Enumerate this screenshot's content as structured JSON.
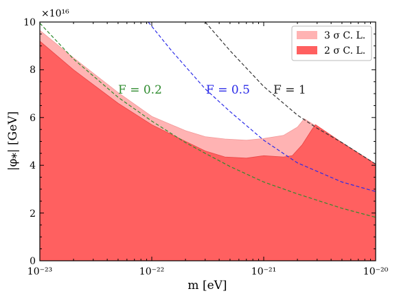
{
  "chart_data": {
    "type": "area",
    "xlabel": "m [eV]",
    "ylabel": "|φ⁎| [GeV]",
    "y_multiplier": "×10¹⁶",
    "xscale": "log",
    "xlim": [
      1e-23,
      1e-20
    ],
    "ylim": [
      0,
      10
    ],
    "x_ticks": [
      {
        "value": 1e-23,
        "label": "10⁻²³"
      },
      {
        "value": 1e-22,
        "label": "10⁻²²"
      },
      {
        "value": 1e-21,
        "label": "10⁻²¹"
      },
      {
        "value": 1e-20,
        "label": "10⁻²⁰"
      }
    ],
    "y_ticks": [
      {
        "value": 0,
        "label": "0"
      },
      {
        "value": 2,
        "label": "2"
      },
      {
        "value": 4,
        "label": "4"
      },
      {
        "value": 6,
        "label": "6"
      },
      {
        "value": 8,
        "label": "8"
      },
      {
        "value": 10,
        "label": "10"
      }
    ],
    "grid": false,
    "legend_position": "top-right",
    "series": [
      {
        "name": "3 σ  C. L.",
        "kind": "fill",
        "color": "#ffb3b3",
        "boundary": [
          [
            1e-23,
            9.65
          ],
          [
            2e-23,
            8.5
          ],
          [
            5e-23,
            7.05
          ],
          [
            1e-22,
            6.05
          ],
          [
            2e-22,
            5.45
          ],
          [
            3e-22,
            5.2
          ],
          [
            4.5e-22,
            5.1
          ],
          [
            7e-22,
            5.05
          ],
          [
            1e-21,
            5.12
          ],
          [
            1.5e-21,
            5.25
          ],
          [
            2e-21,
            5.6
          ],
          [
            2.3e-21,
            5.95
          ],
          [
            2.8e-21,
            5.7
          ],
          [
            5e-21,
            4.95
          ],
          [
            1e-20,
            4.05
          ]
        ]
      },
      {
        "name": "2 σ  C. L.",
        "kind": "fill",
        "color": "#ff6060",
        "boundary": [
          [
            1e-23,
            9.2
          ],
          [
            2e-23,
            8.0
          ],
          [
            5e-23,
            6.6
          ],
          [
            1e-22,
            5.7
          ],
          [
            2e-22,
            5.0
          ],
          [
            3e-22,
            4.6
          ],
          [
            4.5e-22,
            4.35
          ],
          [
            7e-22,
            4.3
          ],
          [
            1e-21,
            4.4
          ],
          [
            1.5e-21,
            4.35
          ],
          [
            1.8e-21,
            4.4
          ],
          [
            2.2e-21,
            4.85
          ],
          [
            2.7e-21,
            5.5
          ],
          [
            2.9e-21,
            5.7
          ],
          [
            5e-21,
            4.95
          ],
          [
            1e-20,
            4.05
          ]
        ]
      }
    ],
    "curves": [
      {
        "label": "F = 0.2",
        "color": "#2e8b2e",
        "style": "dashed",
        "points": [
          [
            1e-23,
            9.95
          ],
          [
            2e-23,
            8.45
          ],
          [
            5e-23,
            6.85
          ],
          [
            1e-22,
            5.85
          ],
          [
            2e-22,
            4.95
          ],
          [
            3e-22,
            4.5
          ],
          [
            5e-22,
            3.95
          ],
          [
            1e-21,
            3.3
          ],
          [
            2e-21,
            2.8
          ],
          [
            5e-21,
            2.2
          ],
          [
            1e-20,
            1.82
          ]
        ]
      },
      {
        "label": "F = 0.5",
        "color": "#2a2ae8",
        "style": "dashed",
        "points": [
          [
            9.3e-23,
            10.0
          ],
          [
            1.5e-22,
            8.8
          ],
          [
            3e-22,
            7.2
          ],
          [
            5e-22,
            6.25
          ],
          [
            1e-21,
            5.05
          ],
          [
            2e-21,
            4.1
          ],
          [
            5e-21,
            3.3
          ],
          [
            1e-20,
            2.9
          ]
        ]
      },
      {
        "label": "F = 1",
        "color": "#333333",
        "style": "dashed",
        "points": [
          [
            3e-22,
            10.0
          ],
          [
            5e-22,
            8.8
          ],
          [
            1e-21,
            7.3
          ],
          [
            2e-21,
            6.1
          ],
          [
            3e-21,
            5.55
          ],
          [
            5e-21,
            4.95
          ],
          [
            1e-20,
            4.05
          ]
        ]
      }
    ]
  }
}
